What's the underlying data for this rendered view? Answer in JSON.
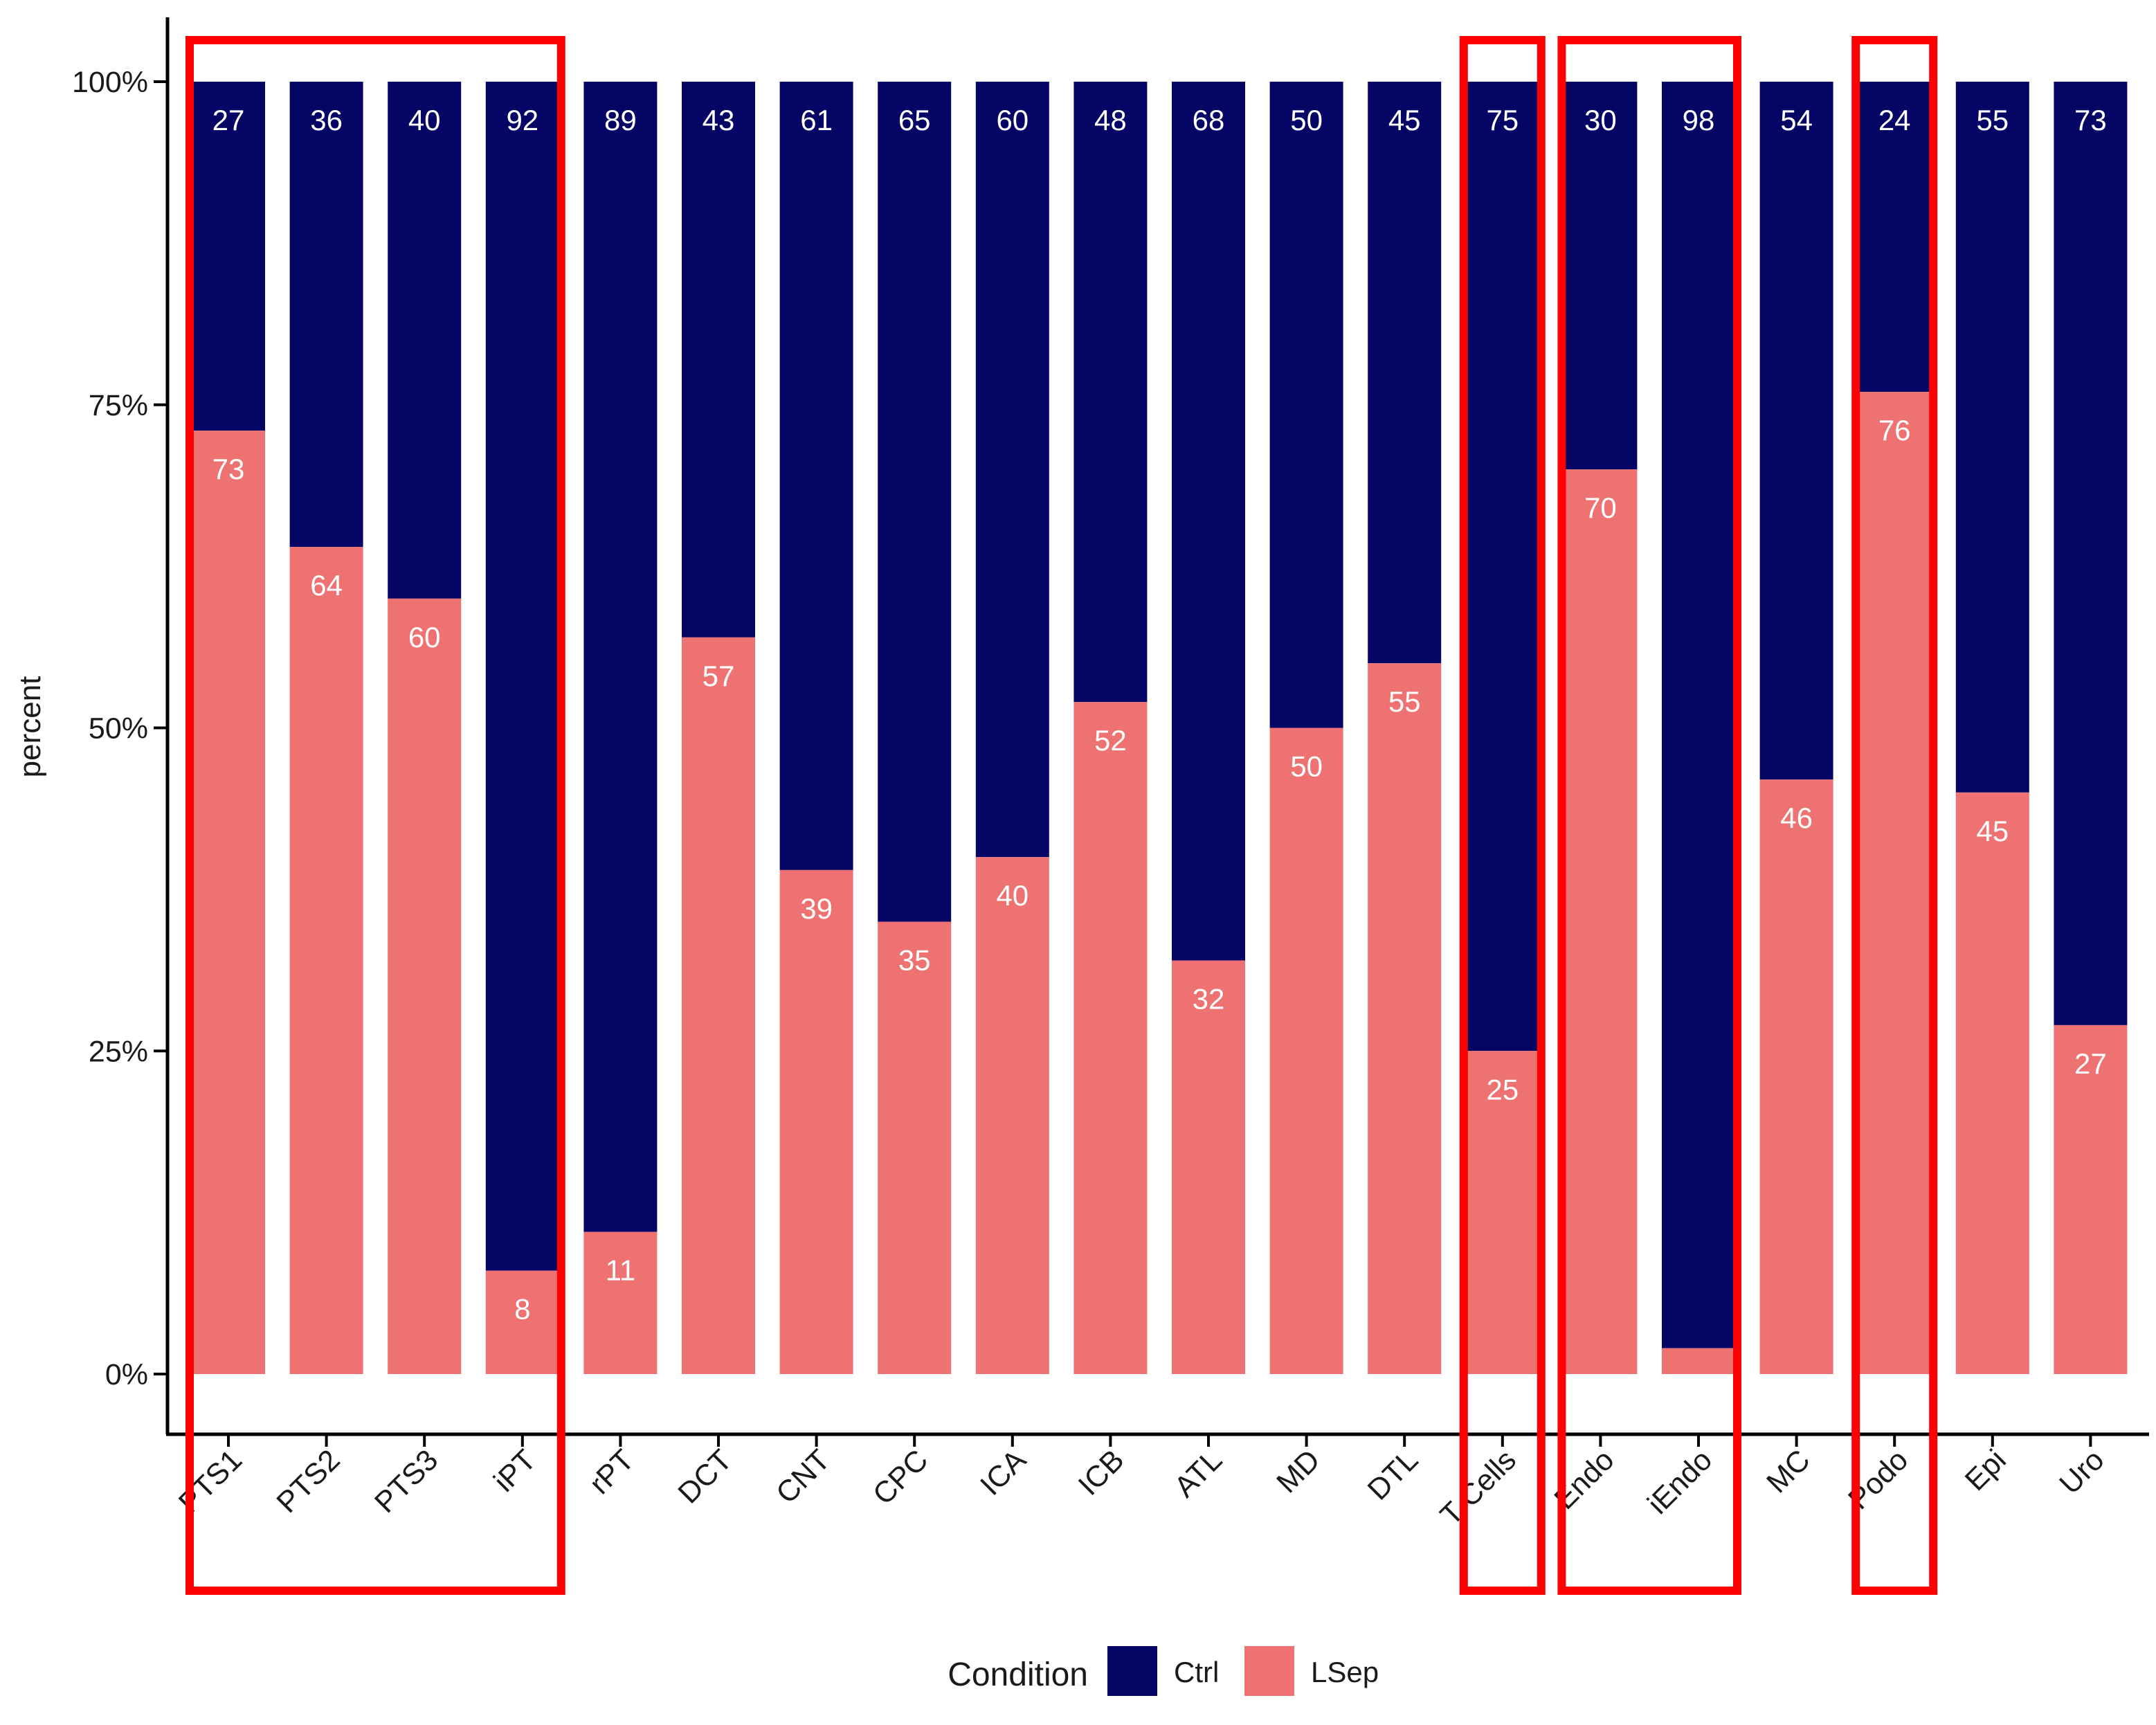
{
  "chart_data": {
    "type": "bar",
    "stacked": true,
    "categories": [
      "PTS1",
      "PTS2",
      "PTS3",
      "iPT",
      "rPT",
      "DCT",
      "CNT",
      "CPC",
      "ICA",
      "ICB",
      "ATL",
      "MD",
      "DTL",
      "T Cells",
      "Endo",
      "iEndo",
      "MC",
      "Podo",
      "Epi",
      "Uro"
    ],
    "series": [
      {
        "name": "Ctrl",
        "color": "#050566",
        "values": [
          27,
          36,
          40,
          92,
          89,
          43,
          61,
          65,
          60,
          48,
          68,
          50,
          45,
          75,
          30,
          98,
          54,
          24,
          55,
          73
        ]
      },
      {
        "name": "LSep",
        "color": "#ED7271",
        "values": [
          73,
          64,
          60,
          8,
          11,
          57,
          39,
          35,
          40,
          52,
          32,
          50,
          55,
          25,
          70,
          2,
          46,
          76,
          45,
          27
        ]
      }
    ],
    "ylabel": "percent",
    "xlabel": "",
    "yticks": [
      "0%",
      "25%",
      "50%",
      "75%",
      "100%"
    ],
    "ylim": [
      0,
      100
    ],
    "legend": {
      "title": "Condition",
      "position": "bottom"
    },
    "highlight_groups": [
      [
        "PTS1",
        "PTS2",
        "PTS3",
        "iPT"
      ],
      [
        "T Cells"
      ],
      [
        "Endo",
        "iEndo"
      ],
      [
        "Podo"
      ]
    ],
    "highlight_color": "#FF0000"
  }
}
